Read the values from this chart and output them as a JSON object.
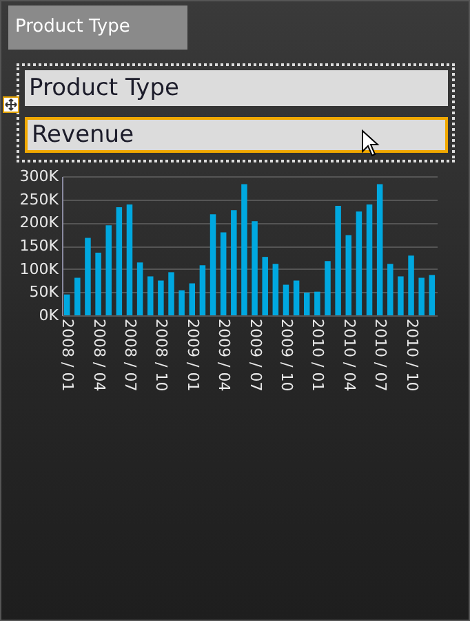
{
  "chart_data": {
    "type": "bar",
    "title": "Product Type",
    "annotations": [
      "Product Type",
      "Revenue"
    ],
    "categories": [
      "2008 / 01",
      null,
      null,
      "2008 / 04",
      null,
      null,
      "2008 / 07",
      null,
      null,
      "2008 / 10",
      null,
      null,
      "2009 / 01",
      null,
      null,
      "2009 / 04",
      null,
      null,
      "2009 / 07",
      null,
      null,
      "2009 / 10",
      null,
      null,
      "2010 / 01",
      null,
      null,
      "2010 / 04",
      null,
      null,
      "2010 / 07",
      null,
      null,
      "2010 / 10",
      null,
      null
    ],
    "values": [
      45000,
      81000,
      167000,
      135000,
      194000,
      233000,
      239000,
      114000,
      84000,
      75000,
      93000,
      54000,
      69000,
      108000,
      218000,
      179000,
      227000,
      283000,
      203000,
      126000,
      111000,
      66000,
      75000,
      49000,
      51000,
      117000,
      236000,
      173000,
      224000,
      239000,
      283000,
      111000,
      84000,
      129000,
      81000,
      87000
    ],
    "color": "#00a8e0",
    "ylim": [
      0,
      300000
    ],
    "yticks": [
      {
        "value": 0,
        "label": "0K"
      },
      {
        "value": 50000,
        "label": "50K"
      },
      {
        "value": 100000,
        "label": "100K"
      },
      {
        "value": 150000,
        "label": "150K"
      },
      {
        "value": 200000,
        "label": "200K"
      },
      {
        "value": 250000,
        "label": "250K"
      },
      {
        "value": 300000,
        "label": "300K"
      }
    ],
    "grid": "y"
  }
}
